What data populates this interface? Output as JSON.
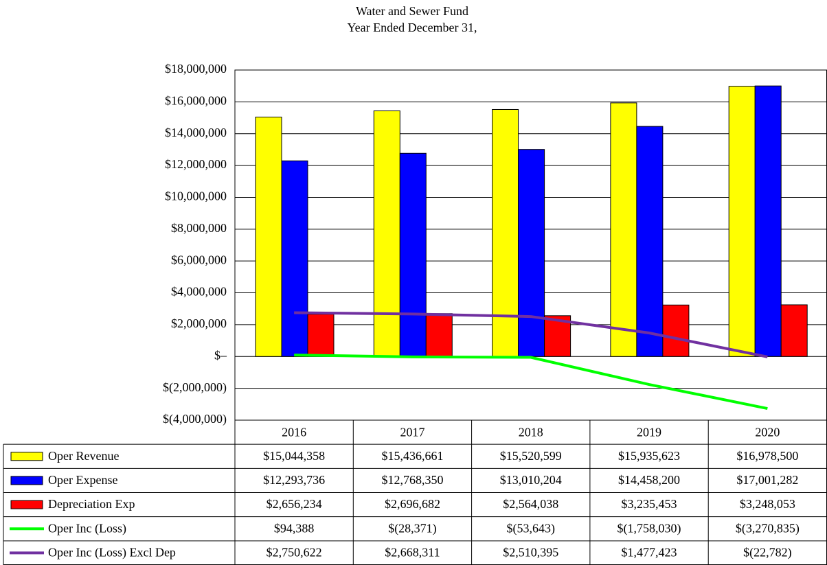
{
  "chart_data": {
    "type": "bar",
    "title": "Water and Sewer Fund",
    "subtitle": "Year Ended December 31,",
    "categories": [
      "2016",
      "2017",
      "2018",
      "2019",
      "2020"
    ],
    "ylim": [
      -4000000,
      18000000
    ],
    "yticks": [
      {
        "value": -4000000,
        "label": "$(4,000,000)"
      },
      {
        "value": -2000000,
        "label": "$(2,000,000)"
      },
      {
        "value": 0,
        "label": "$–"
      },
      {
        "value": 2000000,
        "label": "$2,000,000"
      },
      {
        "value": 4000000,
        "label": "$4,000,000"
      },
      {
        "value": 6000000,
        "label": "$6,000,000"
      },
      {
        "value": 8000000,
        "label": "$8,000,000"
      },
      {
        "value": 10000000,
        "label": "$10,000,000"
      },
      {
        "value": 12000000,
        "label": "$12,000,000"
      },
      {
        "value": 14000000,
        "label": "$14,000,000"
      },
      {
        "value": 16000000,
        "label": "$16,000,000"
      },
      {
        "value": 18000000,
        "label": "$18,000,000"
      }
    ],
    "grid": true,
    "series": [
      {
        "name": "Oper Revenue",
        "type": "bar",
        "color": "#ffff00",
        "values": [
          15044358,
          15436661,
          15520599,
          15935623,
          16978500
        ],
        "value_labels": [
          "$15,044,358",
          "$15,436,661",
          "$15,520,599",
          "$15,935,623",
          "$16,978,500"
        ]
      },
      {
        "name": "Oper Expense",
        "type": "bar",
        "color": "#0000ff",
        "values": [
          12293736,
          12768350,
          13010204,
          14458200,
          17001282
        ],
        "value_labels": [
          "$12,293,736",
          "$12,768,350",
          "$13,010,204",
          "$14,458,200",
          "$17,001,282"
        ]
      },
      {
        "name": "Depreciation Exp",
        "type": "bar",
        "color": "#ff0000",
        "values": [
          2656234,
          2696682,
          2564038,
          3235453,
          3248053
        ],
        "value_labels": [
          "$2,656,234",
          "$2,696,682",
          "$2,564,038",
          "$3,235,453",
          "$3,248,053"
        ]
      },
      {
        "name": "Oper Inc (Loss)",
        "type": "line",
        "color": "#00ff00",
        "values": [
          94388,
          -28371,
          -53643,
          -1758030,
          -3270835
        ],
        "value_labels": [
          "$94,388",
          "$(28,371)",
          "$(53,643)",
          "$(1,758,030)",
          "$(3,270,835)"
        ]
      },
      {
        "name": "Oper Inc (Loss) Excl Dep",
        "type": "line",
        "color": "#7030a0",
        "values": [
          2750622,
          2668311,
          2510395,
          1477423,
          -22782
        ],
        "value_labels": [
          "$2,750,622",
          "$2,668,311",
          "$2,510,395",
          "$1,477,423",
          "$(22,782)"
        ]
      }
    ]
  }
}
